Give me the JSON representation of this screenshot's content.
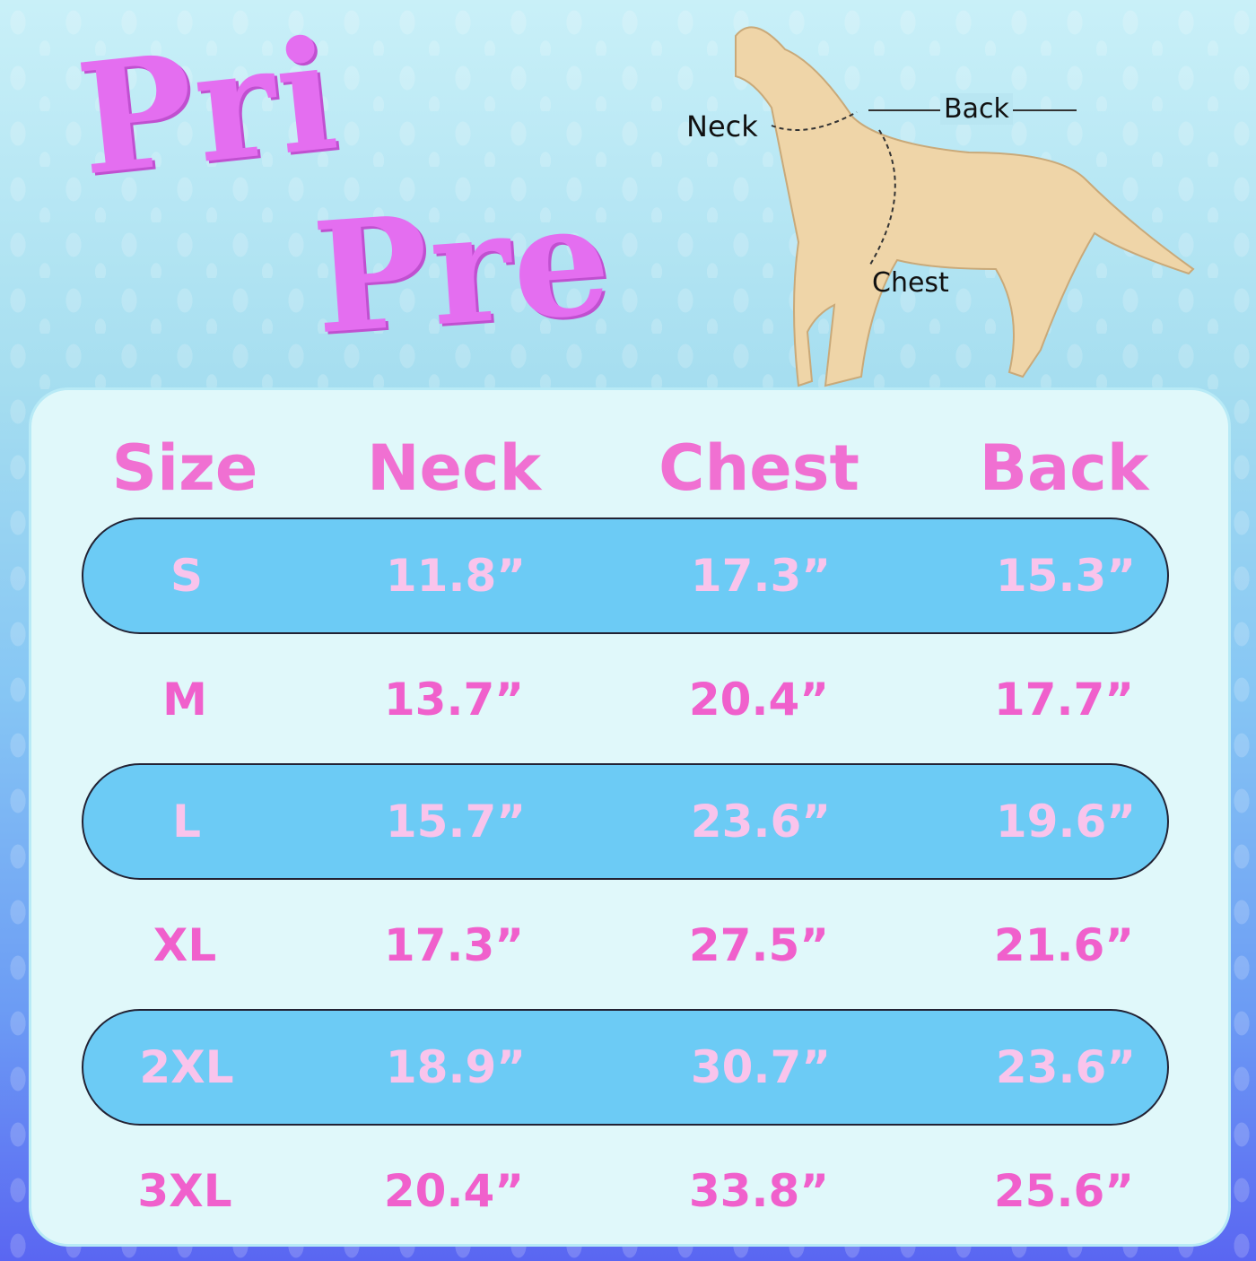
{
  "brand": {
    "line1": "Pri",
    "line2": "Pre"
  },
  "diagram": {
    "neck": "Neck",
    "back": "Back",
    "chest": "Chest"
  },
  "table": {
    "headers": [
      "Size",
      "Neck",
      "Chest",
      "Back"
    ],
    "rows": [
      [
        "S",
        "11.8”",
        "17.3”",
        "15.3”"
      ],
      [
        "M",
        "13.7”",
        "20.4”",
        "17.7”"
      ],
      [
        "L",
        "15.7”",
        "23.6”",
        "19.6”"
      ],
      [
        "XL",
        "17.3”",
        "27.5”",
        "21.6”"
      ],
      [
        "2XL",
        "18.9”",
        "30.7”",
        "23.6”"
      ],
      [
        "3XL",
        "20.4”",
        "33.8”",
        "25.6”"
      ]
    ]
  },
  "colors": {
    "header": "#f070d2",
    "pill": "#6ccbf5",
    "logo": "#e46ef0"
  }
}
